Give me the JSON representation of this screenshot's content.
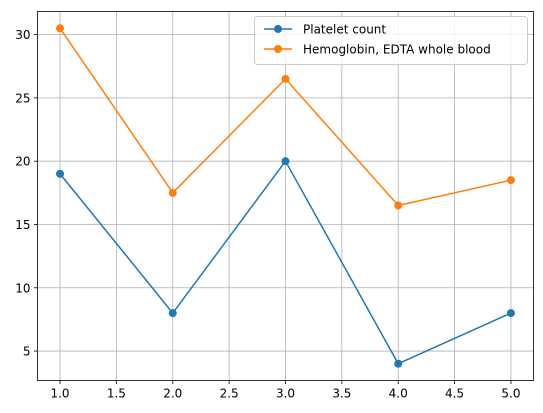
{
  "chart_data": {
    "type": "line",
    "title": "",
    "xlabel": "",
    "ylabel": "",
    "x": [
      1,
      2,
      3,
      4,
      5
    ],
    "series": [
      {
        "name": "Platelet count",
        "values": [
          19,
          8,
          20,
          4,
          8
        ],
        "color": "#1f77b4",
        "marker": "circle"
      },
      {
        "name": "Hemoglobin, EDTA whole blood",
        "values": [
          30.5,
          17.5,
          26.5,
          16.5,
          18.5
        ],
        "color": "#ff7f0e",
        "marker": "circle"
      }
    ],
    "xlim": [
      0.8,
      5.2
    ],
    "ylim": [
      2.675,
      31.825
    ],
    "xticks": [
      "1.0",
      "1.5",
      "2.0",
      "2.5",
      "3.0",
      "3.5",
      "4.0",
      "4.5",
      "5.0"
    ],
    "yticks": [
      "5",
      "10",
      "15",
      "20",
      "25",
      "30"
    ],
    "grid": true,
    "legend_position": "upper right"
  }
}
